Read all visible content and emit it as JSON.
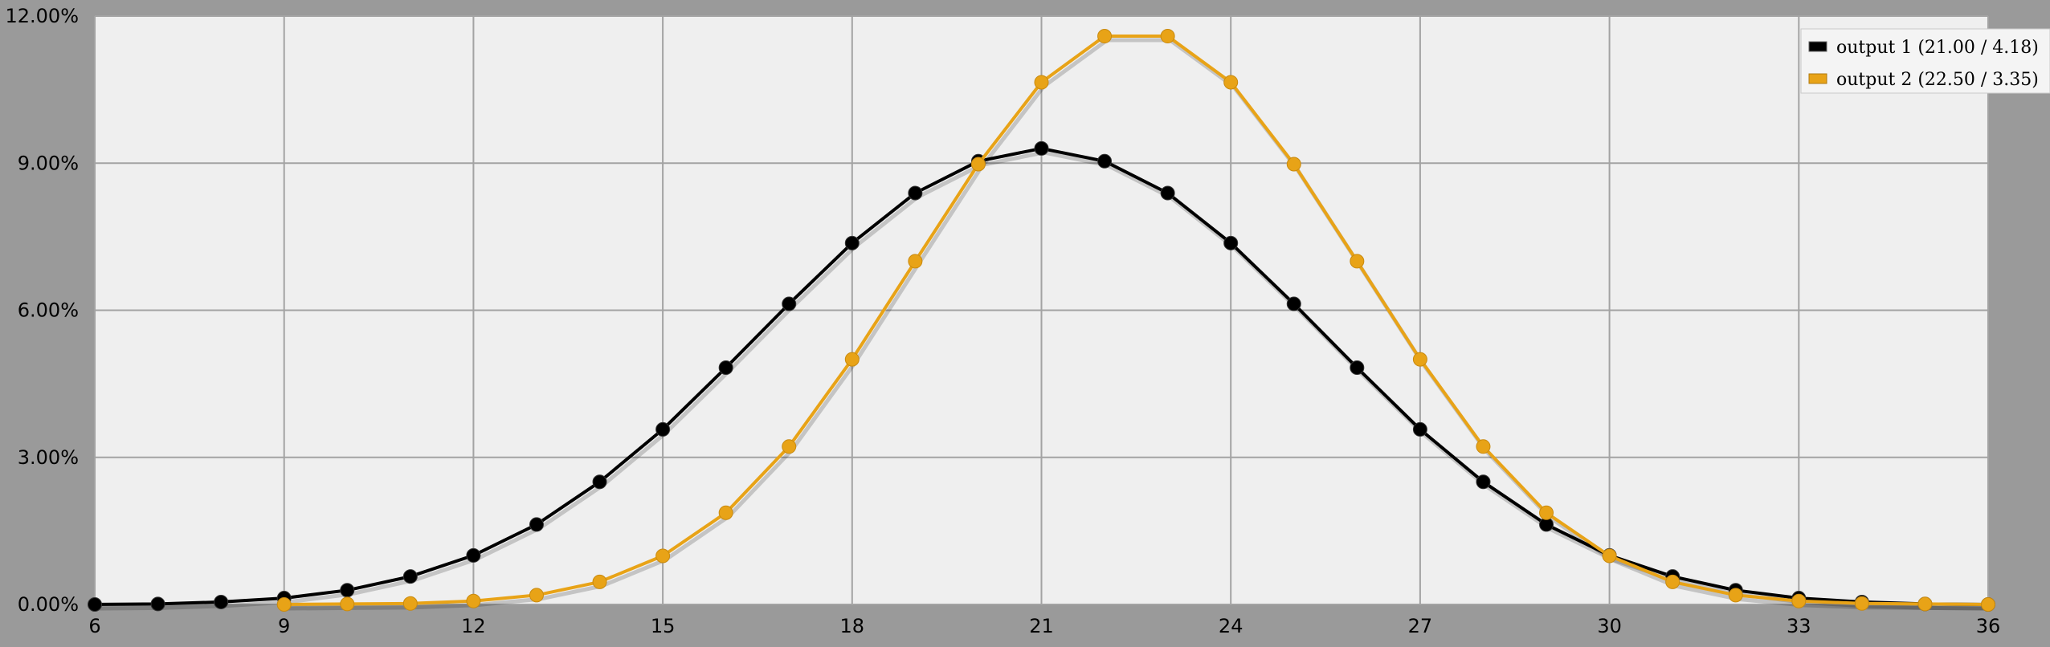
{
  "chart_data": {
    "type": "line",
    "title": "",
    "xlabel": "",
    "ylabel": "",
    "xlim": [
      6,
      36
    ],
    "ylim": [
      0,
      12
    ],
    "x_ticks": [
      "6",
      "9",
      "12",
      "15",
      "18",
      "21",
      "24",
      "27",
      "30",
      "33",
      "36"
    ],
    "y_ticks": [
      "0.00%",
      "3.00%",
      "6.00%",
      "9.00%",
      "12.00%"
    ],
    "grid": true,
    "legend_position": "top-right",
    "series": [
      {
        "name": "output 1 (21.00 / 4.18)",
        "color": "#000000",
        "x": [
          6,
          7,
          8,
          9,
          10,
          11,
          12,
          13,
          14,
          15,
          16,
          17,
          18,
          19,
          20,
          21,
          22,
          23,
          24,
          25,
          26,
          27,
          28,
          29,
          30,
          31,
          32,
          33,
          34,
          35,
          36
        ],
        "values": [
          0.0,
          0.01,
          0.05,
          0.13,
          0.29,
          0.57,
          1.0,
          1.63,
          2.5,
          3.57,
          4.83,
          6.13,
          7.37,
          8.39,
          9.04,
          9.3,
          9.04,
          8.39,
          7.37,
          6.13,
          4.83,
          3.57,
          2.5,
          1.63,
          1.0,
          0.57,
          0.29,
          0.13,
          0.05,
          0.01,
          0.0
        ]
      },
      {
        "name": "output 2 (22.50 / 3.35)",
        "color": "#e8a317",
        "x": [
          9,
          10,
          11,
          12,
          13,
          14,
          15,
          16,
          17,
          18,
          19,
          20,
          21,
          22,
          23,
          24,
          25,
          26,
          27,
          28,
          29,
          30,
          31,
          32,
          33,
          34,
          35,
          36
        ],
        "values": [
          0.0,
          0.01,
          0.02,
          0.07,
          0.19,
          0.46,
          0.99,
          1.87,
          3.22,
          5.0,
          7.0,
          8.98,
          10.65,
          11.59,
          11.59,
          10.65,
          8.98,
          7.0,
          5.0,
          3.22,
          1.87,
          0.99,
          0.46,
          0.19,
          0.07,
          0.02,
          0.01,
          0.0
        ]
      }
    ]
  }
}
